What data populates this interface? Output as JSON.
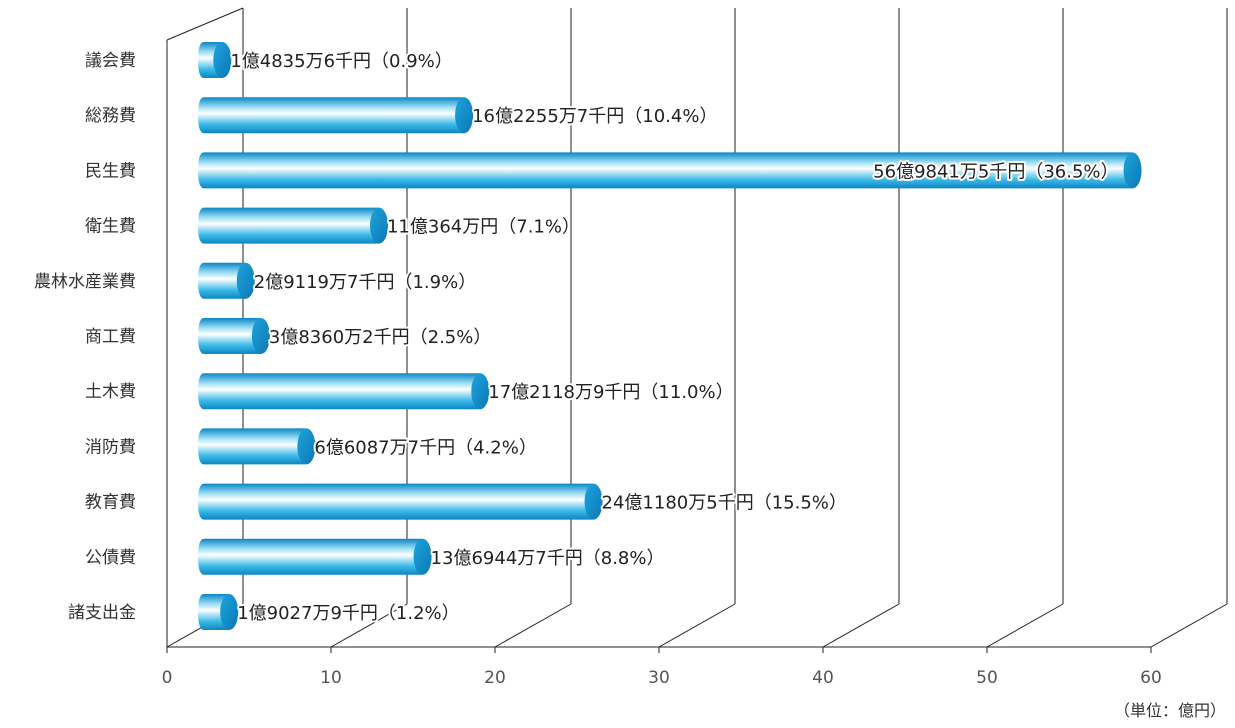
{
  "chart_data": {
    "type": "bar",
    "orientation": "horizontal",
    "categories": [
      "議会費",
      "総務費",
      "民生費",
      "衛生費",
      "農林水産業費",
      "商工費",
      "土木費",
      "消防費",
      "教育費",
      "公債費",
      "諸支出金"
    ],
    "values": [
      1.48356,
      16.22557,
      56.98415,
      11.0364,
      2.91197,
      3.83602,
      17.21189,
      6.60877,
      24.11805,
      13.69447,
      1.90279
    ],
    "value_labels": [
      "1億4835万6千円（0.9%）",
      "16億2255万7千円（10.4%）",
      "56億9841万5千円（36.5%）",
      "11億364万円（7.1%）",
      "2億9119万7千円（1.9%）",
      "3億8360万2千円（2.5%）",
      "17億2118万9千円（11.0%）",
      "6億6087万7千円（4.2%）",
      "24億1180万5千円（15.5%）",
      "13億6944万7千円（8.8%）",
      "1億9027万9千円（1.2%）"
    ],
    "xlim": [
      0,
      60
    ],
    "xticks": [
      0,
      10,
      20,
      30,
      40,
      50,
      60
    ],
    "tick_labels": [
      "0",
      "10",
      "20",
      "30",
      "40",
      "50",
      "60"
    ],
    "unit_label": "（単位：億円）",
    "grid": true,
    "style": "3d-cylinder",
    "bar_color": "#1aa9dd"
  }
}
